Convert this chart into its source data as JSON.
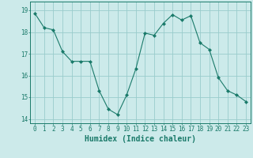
{
  "x": [
    0,
    1,
    2,
    3,
    4,
    5,
    6,
    7,
    8,
    9,
    10,
    11,
    12,
    13,
    14,
    15,
    16,
    17,
    18,
    19,
    20,
    21,
    22,
    23
  ],
  "y": [
    18.85,
    18.2,
    18.1,
    17.1,
    16.65,
    16.65,
    16.65,
    15.3,
    14.45,
    14.2,
    15.1,
    16.3,
    17.95,
    17.85,
    18.4,
    18.8,
    18.55,
    18.75,
    17.5,
    17.2,
    15.9,
    15.3,
    15.1,
    14.8
  ],
  "line_color": "#1a7a6a",
  "marker": "D",
  "marker_size": 2.0,
  "background_color": "#cceaea",
  "grid_color": "#99cccc",
  "xlabel": "Humidex (Indice chaleur)",
  "ylabel": "",
  "title": "",
  "xlim": [
    -0.5,
    23.5
  ],
  "ylim": [
    13.8,
    19.4
  ],
  "yticks": [
    14,
    15,
    16,
    17,
    18,
    19
  ],
  "xticks": [
    0,
    1,
    2,
    3,
    4,
    5,
    6,
    7,
    8,
    9,
    10,
    11,
    12,
    13,
    14,
    15,
    16,
    17,
    18,
    19,
    20,
    21,
    22,
    23
  ],
  "tick_color": "#1a7a6a",
  "tick_fontsize": 5.5,
  "xlabel_fontsize": 7.0,
  "xlabel_fontweight": "bold"
}
